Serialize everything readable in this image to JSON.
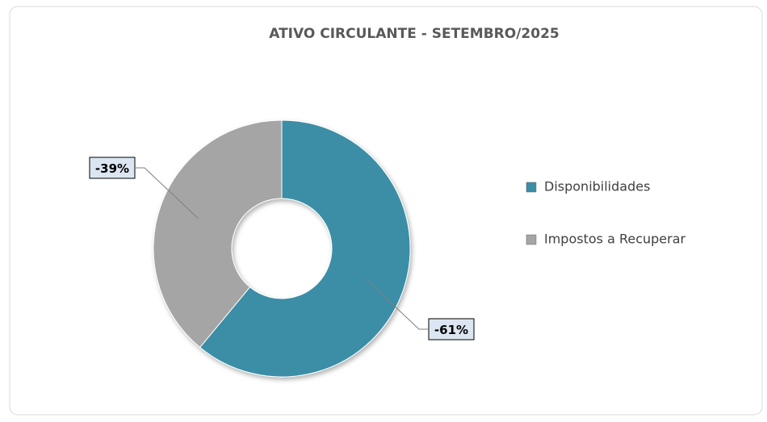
{
  "chart_data": {
    "type": "donut",
    "title": "ATIVO CIRCULANTE  - SETEMBRO/2025",
    "categories": [
      "Disponibilidades",
      "Impostos a Recuperar"
    ],
    "values": [
      -61,
      -39
    ],
    "colors": [
      "#3a8ea6",
      "#a5a5a5"
    ],
    "legend": "right"
  }
}
